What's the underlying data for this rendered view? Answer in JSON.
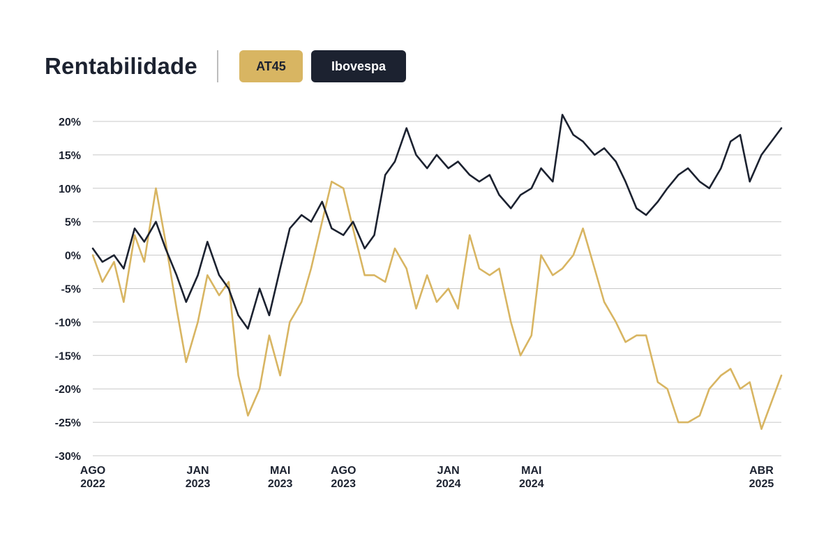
{
  "header": {
    "title": "Rentabilidade",
    "tabs": [
      {
        "label": "AT45",
        "bg": "#d8b562",
        "fg": "#1c2230"
      },
      {
        "label": "Ibovespa",
        "bg": "#1c2230",
        "fg": "#ffffff"
      }
    ]
  },
  "chart_data": {
    "type": "line",
    "title": "",
    "xlabel": "",
    "ylabel": "",
    "ylim": [
      -30,
      20
    ],
    "yticks": [
      20,
      15,
      10,
      5,
      0,
      -5,
      -10,
      -15,
      -20,
      -25,
      -30
    ],
    "ytick_labels": [
      "20%",
      "15%",
      "10%",
      "5%",
      "0%",
      "-5%",
      "-10%",
      "-15%",
      "-20%",
      "-25%",
      "-30%"
    ],
    "xlim": [
      "2022-08-01",
      "2025-04-30"
    ],
    "xticks": [
      {
        "date": "2022-08-01",
        "month": "AGO",
        "year": "2022"
      },
      {
        "date": "2023-01-01",
        "month": "JAN",
        "year": "2023"
      },
      {
        "date": "2023-05-01",
        "month": "MAI",
        "year": "2023"
      },
      {
        "date": "2023-08-01",
        "month": "AGO",
        "year": "2023"
      },
      {
        "date": "2024-01-01",
        "month": "JAN",
        "year": "2024"
      },
      {
        "date": "2024-05-01",
        "month": "MAI",
        "year": "2024"
      },
      {
        "date": "2025-04-01",
        "month": "ABR",
        "year": "2025"
      }
    ],
    "grid": true,
    "legend": "top",
    "series": [
      {
        "name": "AT45",
        "color": "#d8b562",
        "x": [
          "2022-08-01",
          "2022-08-15",
          "2022-09-01",
          "2022-09-15",
          "2022-10-01",
          "2022-10-15",
          "2022-11-01",
          "2022-11-15",
          "2022-12-01",
          "2022-12-15",
          "2023-01-01",
          "2023-01-15",
          "2023-02-01",
          "2023-02-15",
          "2023-03-01",
          "2023-03-15",
          "2023-04-01",
          "2023-04-15",
          "2023-05-01",
          "2023-05-15",
          "2023-06-01",
          "2023-06-15",
          "2023-07-01",
          "2023-07-15",
          "2023-08-01",
          "2023-08-15",
          "2023-09-01",
          "2023-09-15",
          "2023-10-01",
          "2023-10-15",
          "2023-11-01",
          "2023-11-15",
          "2023-12-01",
          "2023-12-15",
          "2024-01-01",
          "2024-01-15",
          "2024-02-01",
          "2024-02-15",
          "2024-03-01",
          "2024-03-15",
          "2024-04-01",
          "2024-04-15",
          "2024-05-01",
          "2024-05-15",
          "2024-06-01",
          "2024-06-15",
          "2024-07-01",
          "2024-07-15",
          "2024-08-01",
          "2024-08-15",
          "2024-09-01",
          "2024-09-15",
          "2024-10-01",
          "2024-10-15",
          "2024-11-01",
          "2024-11-15",
          "2024-12-01",
          "2024-12-15",
          "2025-01-01",
          "2025-01-15",
          "2025-02-01",
          "2025-02-15",
          "2025-03-01",
          "2025-03-15",
          "2025-04-01",
          "2025-04-30"
        ],
        "values": [
          0,
          -4,
          -1,
          -7,
          3,
          -1,
          10,
          2,
          -8,
          -16,
          -10,
          -3,
          -6,
          -4,
          -18,
          -24,
          -20,
          -12,
          -18,
          -10,
          -7,
          -2,
          5,
          11,
          10,
          4,
          -3,
          -3,
          -4,
          1,
          -2,
          -8,
          -3,
          -7,
          -5,
          -8,
          3,
          -2,
          -3,
          -2,
          -10,
          -15,
          -12,
          0,
          -3,
          -2,
          0,
          4,
          -2,
          -7,
          -10,
          -13,
          -12,
          -12,
          -19,
          -20,
          -25,
          -25,
          -24,
          -20,
          -18,
          -17,
          -20,
          -19,
          -26,
          -18
        ]
      },
      {
        "name": "Ibovespa",
        "color": "#1c2230",
        "x": [
          "2022-08-01",
          "2022-08-15",
          "2022-09-01",
          "2022-09-15",
          "2022-10-01",
          "2022-10-15",
          "2022-11-01",
          "2022-11-15",
          "2022-12-01",
          "2022-12-15",
          "2023-01-01",
          "2023-01-15",
          "2023-02-01",
          "2023-02-15",
          "2023-03-01",
          "2023-03-15",
          "2023-04-01",
          "2023-04-15",
          "2023-05-01",
          "2023-05-15",
          "2023-06-01",
          "2023-06-15",
          "2023-07-01",
          "2023-07-15",
          "2023-08-01",
          "2023-08-15",
          "2023-09-01",
          "2023-09-15",
          "2023-10-01",
          "2023-10-15",
          "2023-11-01",
          "2023-11-15",
          "2023-12-01",
          "2023-12-15",
          "2024-01-01",
          "2024-01-15",
          "2024-02-01",
          "2024-02-15",
          "2024-03-01",
          "2024-03-15",
          "2024-04-01",
          "2024-04-15",
          "2024-05-01",
          "2024-05-15",
          "2024-06-01",
          "2024-06-15",
          "2024-07-01",
          "2024-07-15",
          "2024-08-01",
          "2024-08-15",
          "2024-09-01",
          "2024-09-15",
          "2024-10-01",
          "2024-10-15",
          "2024-11-01",
          "2024-11-15",
          "2024-12-01",
          "2024-12-15",
          "2025-01-01",
          "2025-01-15",
          "2025-02-01",
          "2025-02-15",
          "2025-03-01",
          "2025-03-15",
          "2025-04-01",
          "2025-04-30"
        ],
        "values": [
          1,
          -1,
          0,
          -2,
          4,
          2,
          5,
          1,
          -3,
          -7,
          -3,
          2,
          -3,
          -5,
          -9,
          -11,
          -5,
          -9,
          -2,
          4,
          6,
          5,
          8,
          4,
          3,
          5,
          1,
          3,
          12,
          14,
          19,
          15,
          13,
          15,
          13,
          14,
          12,
          11,
          12,
          9,
          7,
          9,
          10,
          13,
          11,
          21,
          18,
          17,
          15,
          16,
          14,
          11,
          7,
          6,
          8,
          10,
          12,
          13,
          11,
          10,
          13,
          17,
          18,
          11,
          15,
          19
        ]
      }
    ]
  }
}
